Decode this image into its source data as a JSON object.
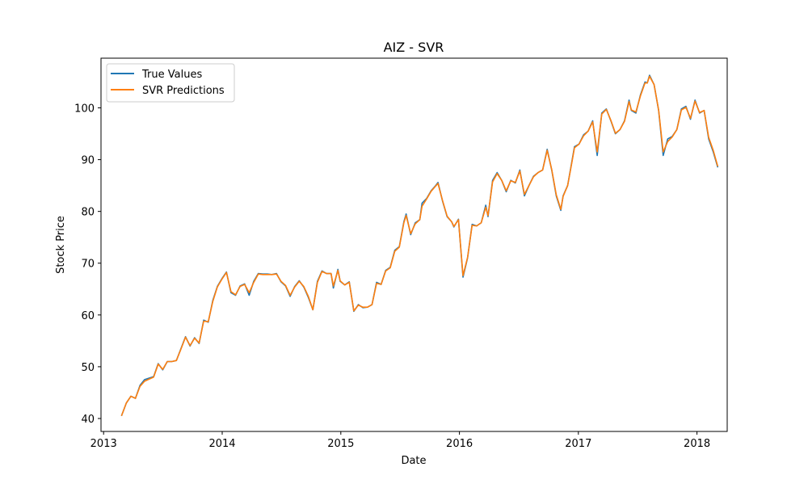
{
  "chart_data": {
    "type": "line",
    "title": "AIZ - SVR",
    "xlabel": "Date",
    "ylabel": "Stock Price",
    "x_ticks": [
      "2013",
      "2014",
      "2015",
      "2016",
      "2017",
      "2018"
    ],
    "y_ticks": [
      40,
      50,
      60,
      70,
      80,
      90,
      100
    ],
    "xlim": [
      "2012-12-24",
      "2018-04-04"
    ],
    "ylim": [
      37.5,
      109.6
    ],
    "grid": false,
    "legend_position": "upper-left",
    "series": [
      {
        "name": "True Values",
        "color": "#1f77b4",
        "points": [
          [
            "2013-02-25",
            40.5
          ],
          [
            "2013-03-12",
            43.0
          ],
          [
            "2013-03-26",
            44.3
          ],
          [
            "2013-04-09",
            43.9
          ],
          [
            "2013-04-23",
            46.4
          ],
          [
            "2013-05-07",
            47.5
          ],
          [
            "2013-05-21",
            47.8
          ],
          [
            "2013-06-04",
            48.1
          ],
          [
            "2013-06-18",
            50.6
          ],
          [
            "2013-07-02",
            49.4
          ],
          [
            "2013-07-16",
            51.0
          ],
          [
            "2013-07-30",
            51.0
          ],
          [
            "2013-08-13",
            51.2
          ],
          [
            "2013-08-27",
            53.5
          ],
          [
            "2013-09-10",
            55.8
          ],
          [
            "2013-09-24",
            54.0
          ],
          [
            "2013-10-08",
            55.6
          ],
          [
            "2013-10-22",
            54.5
          ],
          [
            "2013-11-05",
            59.0
          ],
          [
            "2013-11-19",
            58.6
          ],
          [
            "2013-12-03",
            62.8
          ],
          [
            "2013-12-17",
            65.5
          ],
          [
            "2013-12-31",
            67.0
          ],
          [
            "2014-01-14",
            68.3
          ],
          [
            "2014-01-28",
            64.3
          ],
          [
            "2014-02-11",
            63.8
          ],
          [
            "2014-02-25",
            65.6
          ],
          [
            "2014-03-11",
            66.0
          ],
          [
            "2014-03-25",
            63.8
          ],
          [
            "2014-04-08",
            66.5
          ],
          [
            "2014-04-22",
            68.0
          ],
          [
            "2014-05-06",
            67.9
          ],
          [
            "2014-05-20",
            67.9
          ],
          [
            "2014-06-03",
            67.8
          ],
          [
            "2014-06-17",
            68.0
          ],
          [
            "2014-07-01",
            66.4
          ],
          [
            "2014-07-15",
            65.6
          ],
          [
            "2014-07-29",
            63.6
          ],
          [
            "2014-08-12",
            65.5
          ],
          [
            "2014-08-26",
            66.6
          ],
          [
            "2014-09-09",
            65.4
          ],
          [
            "2014-09-23",
            63.4
          ],
          [
            "2014-10-07",
            61.0
          ],
          [
            "2014-10-21",
            66.5
          ],
          [
            "2014-11-04",
            68.5
          ],
          [
            "2014-11-18",
            68.0
          ],
          [
            "2014-12-02",
            68.0
          ],
          [
            "2014-12-09",
            65.2
          ],
          [
            "2014-12-23",
            68.8
          ],
          [
            "2014-12-30",
            66.5
          ],
          [
            "2015-01-13",
            65.8
          ],
          [
            "2015-01-27",
            66.4
          ],
          [
            "2015-02-10",
            60.7
          ],
          [
            "2015-02-24",
            62.0
          ],
          [
            "2015-03-10",
            61.4
          ],
          [
            "2015-03-24",
            61.5
          ],
          [
            "2015-04-07",
            62.0
          ],
          [
            "2015-04-21",
            66.3
          ],
          [
            "2015-05-05",
            65.9
          ],
          [
            "2015-05-19",
            68.6
          ],
          [
            "2015-06-02",
            69.2
          ],
          [
            "2015-06-16",
            72.5
          ],
          [
            "2015-06-30",
            73.2
          ],
          [
            "2015-07-14",
            78.0
          ],
          [
            "2015-07-21",
            79.5
          ],
          [
            "2015-08-04",
            75.5
          ],
          [
            "2015-08-18",
            77.8
          ],
          [
            "2015-09-01",
            78.4
          ],
          [
            "2015-09-08",
            81.6
          ],
          [
            "2015-09-22",
            82.5
          ],
          [
            "2015-10-06",
            84.0
          ],
          [
            "2015-10-20",
            85.0
          ],
          [
            "2015-10-27",
            85.6
          ],
          [
            "2015-11-10",
            82.0
          ],
          [
            "2015-11-24",
            79.0
          ],
          [
            "2015-12-08",
            78.0
          ],
          [
            "2015-12-15",
            77.0
          ],
          [
            "2015-12-29",
            78.5
          ],
          [
            "2016-01-12",
            67.3
          ],
          [
            "2016-01-26",
            71.0
          ],
          [
            "2016-02-09",
            77.5
          ],
          [
            "2016-02-23",
            77.2
          ],
          [
            "2016-03-08",
            77.8
          ],
          [
            "2016-03-22",
            81.2
          ],
          [
            "2016-03-29",
            79.0
          ],
          [
            "2016-04-12",
            86.0
          ],
          [
            "2016-04-26",
            87.5
          ],
          [
            "2016-05-10",
            86.0
          ],
          [
            "2016-05-24",
            83.8
          ],
          [
            "2016-06-07",
            86.0
          ],
          [
            "2016-06-21",
            85.5
          ],
          [
            "2016-07-05",
            88.0
          ],
          [
            "2016-07-19",
            83.0
          ],
          [
            "2016-08-02",
            85.0
          ],
          [
            "2016-08-16",
            86.8
          ],
          [
            "2016-08-30",
            87.5
          ],
          [
            "2016-09-13",
            88.0
          ],
          [
            "2016-09-27",
            92.0
          ],
          [
            "2016-10-11",
            88.0
          ],
          [
            "2016-10-25",
            83.0
          ],
          [
            "2016-11-08",
            80.2
          ],
          [
            "2016-11-15",
            83.0
          ],
          [
            "2016-11-29",
            85.0
          ],
          [
            "2016-12-13",
            90.0
          ],
          [
            "2016-12-20",
            92.5
          ],
          [
            "2017-01-03",
            93.0
          ],
          [
            "2017-01-17",
            94.8
          ],
          [
            "2017-01-31",
            95.5
          ],
          [
            "2017-02-14",
            97.5
          ],
          [
            "2017-02-28",
            90.8
          ],
          [
            "2017-03-14",
            99.0
          ],
          [
            "2017-03-28",
            99.8
          ],
          [
            "2017-04-11",
            97.5
          ],
          [
            "2017-04-25",
            95.0
          ],
          [
            "2017-05-09",
            95.8
          ],
          [
            "2017-05-23",
            97.5
          ],
          [
            "2017-06-06",
            101.5
          ],
          [
            "2017-06-13",
            99.5
          ],
          [
            "2017-06-27",
            99.0
          ],
          [
            "2017-07-11",
            102.5
          ],
          [
            "2017-07-25",
            105.0
          ],
          [
            "2017-08-01",
            104.8
          ],
          [
            "2017-08-08",
            106.3
          ],
          [
            "2017-08-22",
            104.5
          ],
          [
            "2017-09-05",
            99.5
          ],
          [
            "2017-09-19",
            90.8
          ],
          [
            "2017-10-03",
            94.0
          ],
          [
            "2017-10-17",
            94.5
          ],
          [
            "2017-10-31",
            95.8
          ],
          [
            "2017-11-14",
            99.8
          ],
          [
            "2017-11-28",
            100.3
          ],
          [
            "2017-12-12",
            97.8
          ],
          [
            "2017-12-26",
            101.5
          ],
          [
            "2018-01-09",
            99.0
          ],
          [
            "2018-01-23",
            99.5
          ],
          [
            "2018-02-06",
            94.0
          ],
          [
            "2018-02-20",
            91.5
          ],
          [
            "2018-03-06",
            88.5
          ]
        ]
      },
      {
        "name": "SVR Predictions",
        "color": "#ff7f0e",
        "points": [
          [
            "2013-02-25",
            40.5
          ],
          [
            "2013-03-12",
            43.0
          ],
          [
            "2013-03-26",
            44.3
          ],
          [
            "2013-04-09",
            43.9
          ],
          [
            "2013-04-23",
            46.2
          ],
          [
            "2013-05-07",
            47.2
          ],
          [
            "2013-05-21",
            47.6
          ],
          [
            "2013-06-04",
            48.0
          ],
          [
            "2013-06-18",
            50.5
          ],
          [
            "2013-07-02",
            49.5
          ],
          [
            "2013-07-16",
            51.0
          ],
          [
            "2013-07-30",
            51.0
          ],
          [
            "2013-08-13",
            51.2
          ],
          [
            "2013-08-27",
            53.4
          ],
          [
            "2013-09-10",
            55.7
          ],
          [
            "2013-09-24",
            54.1
          ],
          [
            "2013-10-08",
            55.5
          ],
          [
            "2013-10-22",
            54.6
          ],
          [
            "2013-11-05",
            58.8
          ],
          [
            "2013-11-19",
            58.7
          ],
          [
            "2013-12-03",
            62.6
          ],
          [
            "2013-12-17",
            65.4
          ],
          [
            "2013-12-31",
            66.9
          ],
          [
            "2014-01-14",
            68.2
          ],
          [
            "2014-01-28",
            64.5
          ],
          [
            "2014-02-11",
            63.9
          ],
          [
            "2014-02-25",
            65.5
          ],
          [
            "2014-03-11",
            65.9
          ],
          [
            "2014-03-25",
            64.3
          ],
          [
            "2014-04-08",
            66.3
          ],
          [
            "2014-04-22",
            67.9
          ],
          [
            "2014-05-06",
            67.8
          ],
          [
            "2014-05-20",
            67.8
          ],
          [
            "2014-06-03",
            67.8
          ],
          [
            "2014-06-17",
            67.9
          ],
          [
            "2014-07-01",
            66.5
          ],
          [
            "2014-07-15",
            65.7
          ],
          [
            "2014-07-29",
            63.8
          ],
          [
            "2014-08-12",
            65.4
          ],
          [
            "2014-08-26",
            66.5
          ],
          [
            "2014-09-09",
            65.5
          ],
          [
            "2014-09-23",
            63.6
          ],
          [
            "2014-10-07",
            61.0
          ],
          [
            "2014-10-21",
            66.3
          ],
          [
            "2014-11-04",
            68.4
          ],
          [
            "2014-11-18",
            68.0
          ],
          [
            "2014-12-02",
            68.0
          ],
          [
            "2014-12-09",
            65.6
          ],
          [
            "2014-12-23",
            68.6
          ],
          [
            "2014-12-30",
            66.6
          ],
          [
            "2015-01-13",
            65.8
          ],
          [
            "2015-01-27",
            66.3
          ],
          [
            "2015-02-10",
            60.8
          ],
          [
            "2015-02-24",
            61.9
          ],
          [
            "2015-03-10",
            61.5
          ],
          [
            "2015-03-24",
            61.5
          ],
          [
            "2015-04-07",
            62.0
          ],
          [
            "2015-04-21",
            66.1
          ],
          [
            "2015-05-05",
            65.9
          ],
          [
            "2015-05-19",
            68.5
          ],
          [
            "2015-06-02",
            69.1
          ],
          [
            "2015-06-16",
            72.3
          ],
          [
            "2015-06-30",
            73.1
          ],
          [
            "2015-07-14",
            77.8
          ],
          [
            "2015-07-21",
            79.2
          ],
          [
            "2015-08-04",
            75.7
          ],
          [
            "2015-08-18",
            77.6
          ],
          [
            "2015-09-01",
            78.4
          ],
          [
            "2015-09-08",
            81.0
          ],
          [
            "2015-09-22",
            82.4
          ],
          [
            "2015-10-06",
            83.9
          ],
          [
            "2015-10-20",
            84.9
          ],
          [
            "2015-10-27",
            85.4
          ],
          [
            "2015-11-10",
            82.1
          ],
          [
            "2015-11-24",
            79.1
          ],
          [
            "2015-12-08",
            78.0
          ],
          [
            "2015-12-15",
            77.1
          ],
          [
            "2015-12-29",
            78.4
          ],
          [
            "2016-01-12",
            67.6
          ],
          [
            "2016-01-26",
            71.1
          ],
          [
            "2016-02-09",
            77.3
          ],
          [
            "2016-02-23",
            77.2
          ],
          [
            "2016-03-08",
            77.8
          ],
          [
            "2016-03-22",
            80.8
          ],
          [
            "2016-03-29",
            79.2
          ],
          [
            "2016-04-12",
            85.7
          ],
          [
            "2016-04-26",
            87.3
          ],
          [
            "2016-05-10",
            86.0
          ],
          [
            "2016-05-24",
            84.0
          ],
          [
            "2016-06-07",
            85.9
          ],
          [
            "2016-06-21",
            85.6
          ],
          [
            "2016-07-05",
            87.8
          ],
          [
            "2016-07-19",
            83.3
          ],
          [
            "2016-08-02",
            85.0
          ],
          [
            "2016-08-16",
            86.7
          ],
          [
            "2016-08-30",
            87.5
          ],
          [
            "2016-09-13",
            88.0
          ],
          [
            "2016-09-27",
            91.8
          ],
          [
            "2016-10-11",
            88.1
          ],
          [
            "2016-10-25",
            83.2
          ],
          [
            "2016-11-08",
            80.4
          ],
          [
            "2016-11-15",
            82.9
          ],
          [
            "2016-11-29",
            85.0
          ],
          [
            "2016-12-13",
            89.8
          ],
          [
            "2016-12-20",
            92.3
          ],
          [
            "2017-01-03",
            93.0
          ],
          [
            "2017-01-17",
            94.6
          ],
          [
            "2017-01-31",
            95.5
          ],
          [
            "2017-02-14",
            97.3
          ],
          [
            "2017-02-28",
            91.5
          ],
          [
            "2017-03-14",
            98.8
          ],
          [
            "2017-03-28",
            99.7
          ],
          [
            "2017-04-11",
            97.6
          ],
          [
            "2017-04-25",
            95.1
          ],
          [
            "2017-05-09",
            95.8
          ],
          [
            "2017-05-23",
            97.4
          ],
          [
            "2017-06-06",
            101.2
          ],
          [
            "2017-06-13",
            99.6
          ],
          [
            "2017-06-27",
            99.2
          ],
          [
            "2017-07-11",
            102.3
          ],
          [
            "2017-07-25",
            104.8
          ],
          [
            "2017-08-01",
            104.8
          ],
          [
            "2017-08-08",
            106.1
          ],
          [
            "2017-08-22",
            104.5
          ],
          [
            "2017-09-05",
            99.6
          ],
          [
            "2017-09-19",
            91.5
          ],
          [
            "2017-10-03",
            93.5
          ],
          [
            "2017-10-17",
            94.4
          ],
          [
            "2017-10-31",
            95.8
          ],
          [
            "2017-11-14",
            99.6
          ],
          [
            "2017-11-28",
            100.1
          ],
          [
            "2017-12-12",
            98.0
          ],
          [
            "2017-12-26",
            101.3
          ],
          [
            "2018-01-09",
            99.1
          ],
          [
            "2018-01-23",
            99.5
          ],
          [
            "2018-02-06",
            94.3
          ],
          [
            "2018-02-20",
            91.8
          ],
          [
            "2018-03-06",
            88.7
          ]
        ]
      }
    ]
  }
}
